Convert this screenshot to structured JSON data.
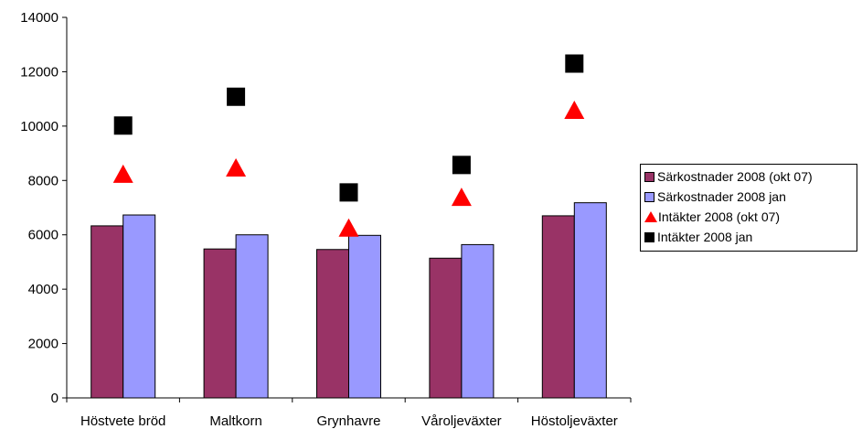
{
  "chart_data": {
    "type": "bar",
    "categories": [
      "Höstvete bröd",
      "Maltkorn",
      "Grynhavre",
      "Våroljeväxter",
      "Höstoljeväxter"
    ],
    "series": [
      {
        "name": "Särkostnader 2008 (okt 07)",
        "kind": "bar",
        "color": "#993366",
        "marker": "bar",
        "values": [
          6330,
          5480,
          5460,
          5140,
          6700
        ]
      },
      {
        "name": "Särkostnader 2008 jan",
        "kind": "bar",
        "color": "#9999ff",
        "marker": "bar",
        "values": [
          6730,
          6000,
          5980,
          5640,
          7180
        ]
      },
      {
        "name": "Intäkter 2008 (okt 07)",
        "kind": "marker",
        "color": "#ff0000",
        "marker": "triangle",
        "values": [
          8250,
          8480,
          6270,
          7400,
          10600
        ]
      },
      {
        "name": "Intäkter 2008 jan",
        "kind": "marker",
        "color": "#000000",
        "marker": "square",
        "values": [
          10020,
          11080,
          7560,
          8570,
          12300
        ]
      }
    ],
    "ylim": [
      0,
      14000
    ],
    "yticks": [
      0,
      2000,
      4000,
      6000,
      8000,
      10000,
      12000,
      14000
    ],
    "xlabel": "",
    "ylabel": "",
    "grid": false,
    "legend": "right"
  }
}
